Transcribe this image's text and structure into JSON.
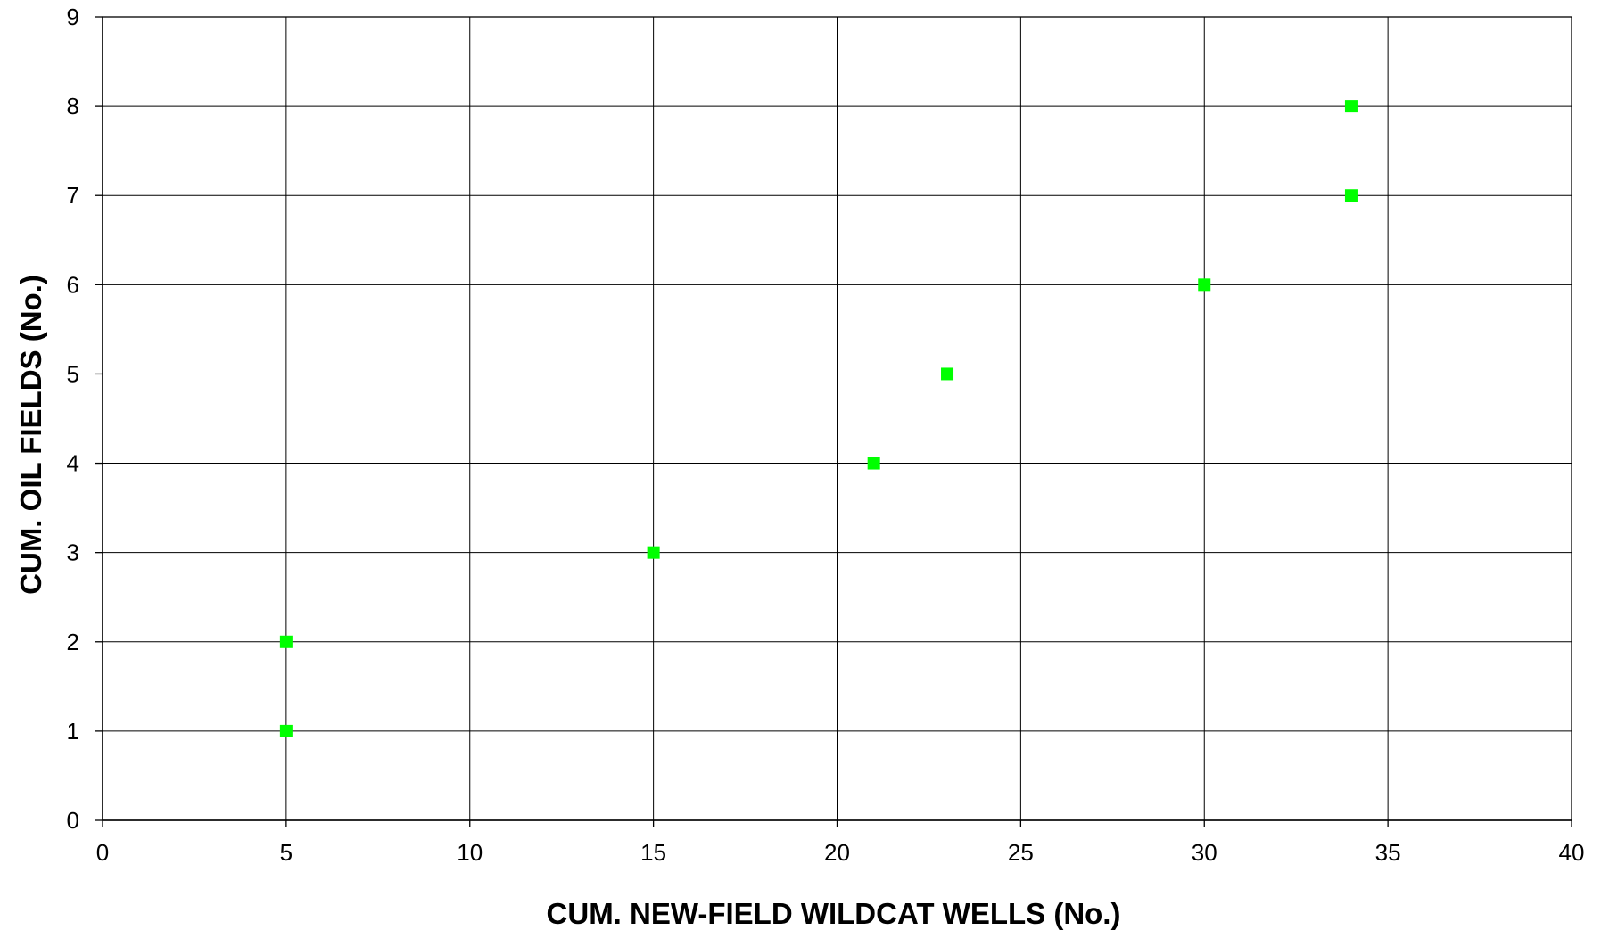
{
  "chart_data": {
    "type": "scatter",
    "title": "",
    "xlabel": "CUM. NEW-FIELD WILDCAT WELLS (No.)",
    "ylabel": "CUM. OIL FIELDS (No.)",
    "xlim": [
      0,
      40
    ],
    "ylim": [
      0,
      9
    ],
    "xticks": [
      0,
      5,
      10,
      15,
      20,
      25,
      30,
      35,
      40
    ],
    "yticks": [
      0,
      1,
      2,
      3,
      4,
      5,
      6,
      7,
      8,
      9
    ],
    "grid": true,
    "legend": "none",
    "marker": "square",
    "colors": {
      "marker": "#00ff00",
      "grid": "#000000",
      "background": "#ffffff"
    },
    "series": [
      {
        "points": [
          {
            "x": 5,
            "y": 1
          },
          {
            "x": 5,
            "y": 2
          },
          {
            "x": 15,
            "y": 3
          },
          {
            "x": 21,
            "y": 4
          },
          {
            "x": 23,
            "y": 5
          },
          {
            "x": 30,
            "y": 6
          },
          {
            "x": 34,
            "y": 7
          },
          {
            "x": 34,
            "y": 8
          }
        ]
      }
    ]
  }
}
